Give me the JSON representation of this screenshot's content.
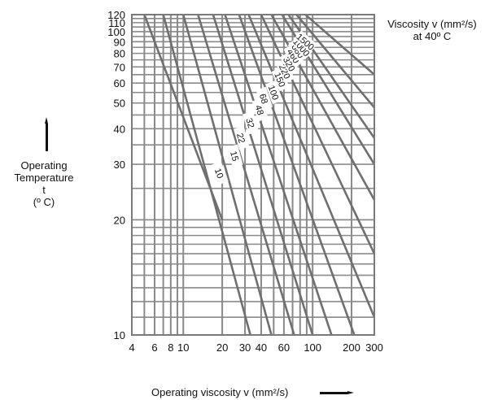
{
  "chart_data": {
    "type": "line",
    "title": "",
    "ylabel_lines": [
      "Operating",
      "Temperature",
      "t",
      "(º C)"
    ],
    "xlabel": "Operating viscosity v (mm²/s)",
    "legend_title_lines": [
      "Viscosity v (mm²/s)",
      "at 40º C"
    ],
    "x_scale": "log",
    "y_scale": "log-log",
    "xlim": [
      4,
      300
    ],
    "ylim": [
      10,
      120
    ],
    "x_ticks": [
      4,
      6,
      8,
      10,
      20,
      30,
      40,
      60,
      100,
      200,
      300
    ],
    "x_tick_labels": [
      "4",
      "6",
      "8",
      "10",
      "20",
      "30",
      "40",
      "60",
      "100",
      "200",
      "300"
    ],
    "y_ticks": [
      10,
      20,
      30,
      40,
      50,
      60,
      70,
      80,
      90,
      100,
      110,
      120
    ],
    "y_tick_labels": [
      "10",
      "20",
      "30",
      "40",
      "50",
      "60",
      "70",
      "80",
      "90",
      "100",
      "110",
      "120"
    ],
    "series": [
      {
        "name": "10",
        "points": [
          [
            5,
            120
          ],
          [
            20,
            20
          ]
        ]
      },
      {
        "name": "15",
        "points": [
          [
            7,
            120
          ],
          [
            33,
            10
          ]
        ]
      },
      {
        "name": "22",
        "points": [
          [
            10,
            120
          ],
          [
            48,
            10
          ]
        ]
      },
      {
        "name": "32",
        "points": [
          [
            13,
            120
          ],
          [
            72,
            10
          ]
        ]
      },
      {
        "name": "48",
        "points": [
          [
            17,
            120
          ],
          [
            100,
            10
          ]
        ]
      },
      {
        "name": "68",
        "points": [
          [
            21,
            120
          ],
          [
            140,
            10
          ]
        ]
      },
      {
        "name": "100",
        "points": [
          [
            27,
            120
          ],
          [
            210,
            10
          ]
        ]
      },
      {
        "name": "150",
        "points": [
          [
            32,
            120
          ],
          [
            300,
            11
          ]
        ]
      },
      {
        "name": "220",
        "points": [
          [
            40,
            120
          ],
          [
            300,
            16
          ]
        ]
      },
      {
        "name": "320",
        "points": [
          [
            48,
            120
          ],
          [
            300,
            23
          ]
        ]
      },
      {
        "name": "460",
        "points": [
          [
            58,
            120
          ],
          [
            300,
            30
          ]
        ]
      },
      {
        "name": "680",
        "points": [
          [
            65,
            120
          ],
          [
            300,
            37
          ]
        ]
      },
      {
        "name": "1000",
        "points": [
          [
            75,
            120
          ],
          [
            300,
            48
          ]
        ]
      },
      {
        "name": "1500",
        "points": [
          [
            88,
            120
          ],
          [
            300,
            65
          ]
        ]
      }
    ],
    "series_label_positions": [
      {
        "name": "10",
        "at": [
          19,
          28
        ]
      },
      {
        "name": "15",
        "at": [
          25,
          32
        ]
      },
      {
        "name": "22",
        "at": [
          28,
          37
        ]
      },
      {
        "name": "32",
        "at": [
          33,
          42
        ]
      },
      {
        "name": "48",
        "at": [
          39,
          47
        ]
      },
      {
        "name": "68",
        "at": [
          42,
          52
        ]
      },
      {
        "name": "100",
        "at": [
          50,
          55
        ]
      },
      {
        "name": "150",
        "at": [
          56,
          62
        ]
      },
      {
        "name": "220",
        "at": [
          61,
          67
        ]
      },
      {
        "name": "320",
        "at": [
          66,
          72
        ]
      },
      {
        "name": "460",
        "at": [
          71,
          78
        ]
      },
      {
        "name": "680",
        "at": [
          77,
          82
        ]
      },
      {
        "name": "1000",
        "at": [
          82,
          85
        ]
      },
      {
        "name": "1500",
        "at": [
          88,
          90
        ]
      }
    ],
    "grid": true,
    "legend_position": "top-right"
  }
}
